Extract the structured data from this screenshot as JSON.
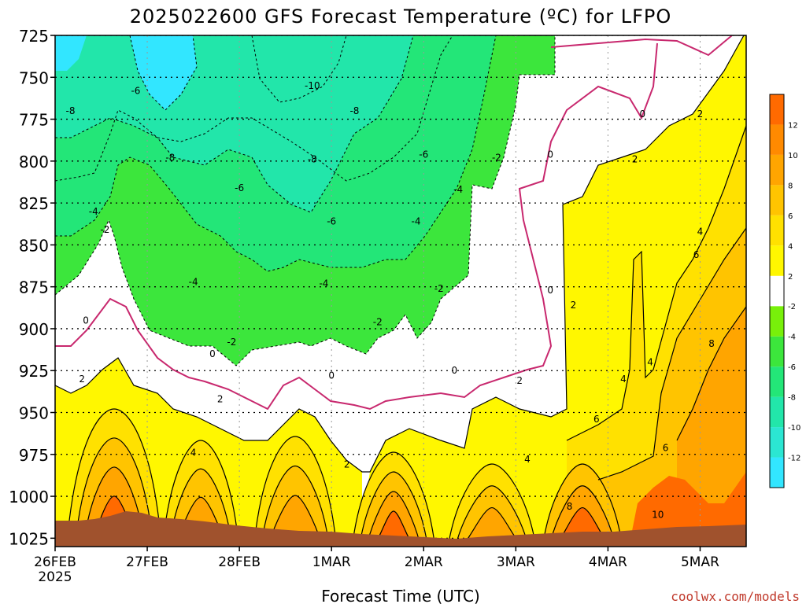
{
  "chart_data": {
    "type": "heatmap",
    "title": "2025022600 GFS Forecast Temperature (ºC) for LFPO",
    "xlabel": "Forecast Time (UTC)",
    "ylabel": "",
    "credit": "coolwx.com/models",
    "y_axis": {
      "reversed": true,
      "range": [
        725,
        1030
      ],
      "ticks": [
        "725",
        "750",
        "775",
        "800",
        "825",
        "850",
        "875",
        "900",
        "925",
        "950",
        "975",
        "1000",
        "1025"
      ]
    },
    "x_axis": {
      "range": [
        "2025-02-26T00",
        "2025-03-05T12"
      ],
      "ticks": [
        {
          "x": "2025-02-26",
          "label": "26FEB",
          "sub": "2025"
        },
        {
          "x": "2025-02-27",
          "label": "27FEB"
        },
        {
          "x": "2025-02-28",
          "label": "28FEB"
        },
        {
          "x": "2025-03-01",
          "label": "1MAR"
        },
        {
          "x": "2025-03-02",
          "label": "2MAR"
        },
        {
          "x": "2025-03-03",
          "label": "3MAR"
        },
        {
          "x": "2025-03-04",
          "label": "4MAR"
        },
        {
          "x": "2025-03-05",
          "label": "5MAR"
        }
      ]
    },
    "grid": true,
    "colorbar": {
      "placement": "right",
      "labels": [
        "-12",
        "-10",
        "-8",
        "-6",
        "-4",
        "-2",
        "2",
        "4",
        "6",
        "8",
        "10",
        "12"
      ],
      "bands": [
        {
          "color": "#32e6ff"
        },
        {
          "color": "#2be6d2"
        },
        {
          "color": "#22e6aa"
        },
        {
          "color": "#23e678"
        },
        {
          "color": "#3ce63c"
        },
        {
          "color": "#78f00a"
        },
        {
          "color": "#ffffff"
        },
        {
          "color": "#fff700"
        },
        {
          "color": "#ffe100"
        },
        {
          "color": "#ffc400"
        },
        {
          "color": "#ffa500"
        },
        {
          "color": "#ff8a00"
        },
        {
          "color": "#ff6a00"
        }
      ]
    },
    "zones": [
      {
        "range": "< -10",
        "color": "#32e6ff"
      },
      {
        "range": "-10 to -8",
        "color": "#22e6aa"
      },
      {
        "range": "-8 to -4",
        "color": "#23e678"
      },
      {
        "range": "-4 to -2",
        "color": "#3ce63c"
      },
      {
        "range": "-2 to 2",
        "color": "#ffffff"
      },
      {
        "range": "2 to 4",
        "color": "#fff700"
      },
      {
        "range": "4 to 6",
        "color": "#ffe100"
      },
      {
        "range": "6 to 8",
        "color": "#ffc400"
      },
      {
        "range": "8 to 10",
        "color": "#ffa500"
      },
      {
        "range": "> 10",
        "color": "#ff6a00"
      }
    ],
    "surface_color": "#a0522d",
    "zero_line_color": "#c8286e",
    "contour_labels": [
      {
        "text": "-10",
        "x": "2025-02-28T19",
        "y": 755
      },
      {
        "text": "-8",
        "x": "2025-02-26T04",
        "y": 770
      },
      {
        "text": "-8",
        "x": "2025-02-27T06",
        "y": 798
      },
      {
        "text": "-8",
        "x": "2025-02-28T19",
        "y": 799
      },
      {
        "text": "-8",
        "x": "2025-03-01T06",
        "y": 770
      },
      {
        "text": "-6",
        "x": "2025-02-26T21",
        "y": 758
      },
      {
        "text": "-6",
        "x": "2025-02-28T00",
        "y": 816
      },
      {
        "text": "-6",
        "x": "2025-03-01T00",
        "y": 836
      },
      {
        "text": "-6",
        "x": "2025-03-02T00",
        "y": 796
      },
      {
        "text": "-4",
        "x": "2025-02-26T10",
        "y": 830
      },
      {
        "text": "-4",
        "x": "2025-02-27T12",
        "y": 872
      },
      {
        "text": "-4",
        "x": "2025-02-28T22",
        "y": 873
      },
      {
        "text": "-4",
        "x": "2025-03-01T22",
        "y": 836
      },
      {
        "text": "-4",
        "x": "2025-03-02T09",
        "y": 817
      },
      {
        "text": "-2",
        "x": "2025-02-26T13",
        "y": 841
      },
      {
        "text": "-2",
        "x": "2025-02-27T22",
        "y": 908
      },
      {
        "text": "-2",
        "x": "2025-03-01T12",
        "y": 896
      },
      {
        "text": "-2",
        "x": "2025-03-02T04",
        "y": 876
      },
      {
        "text": "-2",
        "x": "2025-03-02T19",
        "y": 798
      },
      {
        "text": "0",
        "x": "2025-02-26T08",
        "y": 895
      },
      {
        "text": "0",
        "x": "2025-02-27T17",
        "y": 915
      },
      {
        "text": "0",
        "x": "2025-03-01T00",
        "y": 928
      },
      {
        "text": "0",
        "x": "2025-03-02T08",
        "y": 925
      },
      {
        "text": "0",
        "x": "2025-03-03T09",
        "y": 796
      },
      {
        "text": "0",
        "x": "2025-03-03T09",
        "y": 877
      },
      {
        "text": "0",
        "x": "2025-03-04T09",
        "y": 772
      },
      {
        "text": "2",
        "x": "2025-02-26T07",
        "y": 930
      },
      {
        "text": "2",
        "x": "2025-02-27T19",
        "y": 942
      },
      {
        "text": "2",
        "x": "2025-03-01T04",
        "y": 981
      },
      {
        "text": "2",
        "x": "2025-03-03T01",
        "y": 931
      },
      {
        "text": "2",
        "x": "2025-03-03T15",
        "y": 886
      },
      {
        "text": "2",
        "x": "2025-03-04T07",
        "y": 799
      },
      {
        "text": "2",
        "x": "2025-03-04T24",
        "y": 772
      },
      {
        "text": "4",
        "x": "2025-02-27T12",
        "y": 974
      },
      {
        "text": "4",
        "x": "2025-03-03T03",
        "y": 978
      },
      {
        "text": "4",
        "x": "2025-03-04T04",
        "y": 930
      },
      {
        "text": "4",
        "x": "2025-03-04T11",
        "y": 920
      },
      {
        "text": "4",
        "x": "2025-03-04T24",
        "y": 842
      },
      {
        "text": "6",
        "x": "2025-03-03T21",
        "y": 954
      },
      {
        "text": "6",
        "x": "2025-03-04T15",
        "y": 971
      },
      {
        "text": "6",
        "x": "2025-03-04T23",
        "y": 856
      },
      {
        "text": "8",
        "x": "2025-03-03T14",
        "y": 1006
      },
      {
        "text": "8",
        "x": "2025-03-05T03",
        "y": 909
      },
      {
        "text": "10",
        "x": "2025-03-04T13",
        "y": 1011
      }
    ]
  }
}
